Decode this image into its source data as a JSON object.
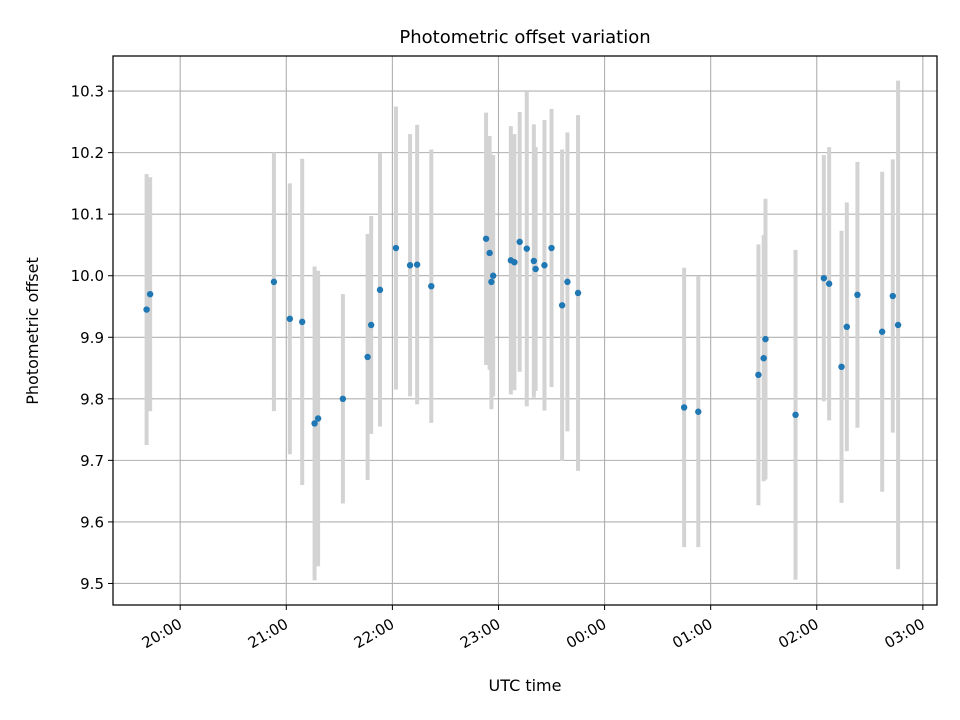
{
  "chart_data": {
    "type": "scatter",
    "title": "Photometric offset variation",
    "xlabel": "UTC time",
    "ylabel": "Photometric offset",
    "x_axis": "time (UTC, evening into next morning)",
    "x_tick_labels": [
      "20:00",
      "21:00",
      "22:00",
      "23:00",
      "00:00",
      "01:00",
      "02:00",
      "03:00"
    ],
    "y_ticks": [
      9.5,
      9.6,
      9.7,
      9.8,
      9.9,
      10.0,
      10.1,
      10.2,
      10.3
    ],
    "y_tick_labels": [
      "9.5",
      "9.6",
      "9.7",
      "9.8",
      "9.9",
      "10.0",
      "10.1",
      "10.2",
      "10.3"
    ],
    "xlim": [
      "19:22",
      "03:08"
    ],
    "ylim": [
      9.465,
      10.357
    ],
    "grid": true,
    "marker_color": "#1f77b4",
    "errorbar_color": "#d3d3d3",
    "series": [
      {
        "points": [
          {
            "x": "19:41",
            "y": 9.945,
            "yerr": 0.22
          },
          {
            "x": "19:43",
            "y": 9.97,
            "yerr": 0.19
          },
          {
            "x": "20:53",
            "y": 9.99,
            "yerr": 0.21
          },
          {
            "x": "21:02",
            "y": 9.93,
            "yerr": 0.22
          },
          {
            "x": "21:09",
            "y": 9.925,
            "yerr": 0.265
          },
          {
            "x": "21:16",
            "y": 9.76,
            "yerr": 0.255
          },
          {
            "x": "21:18",
            "y": 9.768,
            "yerr": 0.24
          },
          {
            "x": "21:32",
            "y": 9.8,
            "yerr": 0.17
          },
          {
            "x": "21:46",
            "y": 9.868,
            "yerr": 0.2
          },
          {
            "x": "21:48",
            "y": 9.92,
            "yerr": 0.177
          },
          {
            "x": "21:53",
            "y": 9.977,
            "yerr": 0.222
          },
          {
            "x": "22:02",
            "y": 10.045,
            "yerr": 0.23
          },
          {
            "x": "22:10",
            "y": 10.017,
            "yerr": 0.213
          },
          {
            "x": "22:14",
            "y": 10.018,
            "yerr": 0.227
          },
          {
            "x": "22:22",
            "y": 9.983,
            "yerr": 0.222
          },
          {
            "x": "22:53",
            "y": 10.06,
            "yerr": 0.205
          },
          {
            "x": "22:55",
            "y": 10.037,
            "yerr": 0.19
          },
          {
            "x": "22:56",
            "y": 9.99,
            "yerr": 0.207
          },
          {
            "x": "22:57",
            "y": 10.0,
            "yerr": 0.196
          },
          {
            "x": "23:07",
            "y": 10.025,
            "yerr": 0.218
          },
          {
            "x": "23:09",
            "y": 10.022,
            "yerr": 0.208
          },
          {
            "x": "23:12",
            "y": 10.055,
            "yerr": 0.211
          },
          {
            "x": "23:16",
            "y": 10.044,
            "yerr": 0.256
          },
          {
            "x": "23:20",
            "y": 10.024,
            "yerr": 0.222
          },
          {
            "x": "23:21",
            "y": 10.011,
            "yerr": 0.198
          },
          {
            "x": "23:26",
            "y": 10.017,
            "yerr": 0.236
          },
          {
            "x": "23:30",
            "y": 10.045,
            "yerr": 0.226
          },
          {
            "x": "23:36",
            "y": 9.952,
            "yerr": 0.253
          },
          {
            "x": "23:39",
            "y": 9.99,
            "yerr": 0.243
          },
          {
            "x": "23:45",
            "y": 9.972,
            "yerr": 0.289
          },
          {
            "x": "00:45",
            "y": 9.786,
            "yerr": 0.227
          },
          {
            "x": "00:53",
            "y": 9.779,
            "yerr": 0.22
          },
          {
            "x": "01:27",
            "y": 9.839,
            "yerr": 0.212
          },
          {
            "x": "01:30",
            "y": 9.866,
            "yerr": 0.2
          },
          {
            "x": "01:31",
            "y": 9.897,
            "yerr": 0.228
          },
          {
            "x": "01:48",
            "y": 9.774,
            "yerr": 0.268
          },
          {
            "x": "02:04",
            "y": 9.996,
            "yerr": 0.2
          },
          {
            "x": "02:07",
            "y": 9.987,
            "yerr": 0.222
          },
          {
            "x": "02:14",
            "y": 9.852,
            "yerr": 0.221
          },
          {
            "x": "02:17",
            "y": 9.917,
            "yerr": 0.202
          },
          {
            "x": "02:23",
            "y": 9.969,
            "yerr": 0.216
          },
          {
            "x": "02:37",
            "y": 9.909,
            "yerr": 0.26
          },
          {
            "x": "02:43",
            "y": 9.967,
            "yerr": 0.222
          },
          {
            "x": "02:46",
            "y": 9.92,
            "yerr": 0.397
          }
        ]
      }
    ]
  }
}
